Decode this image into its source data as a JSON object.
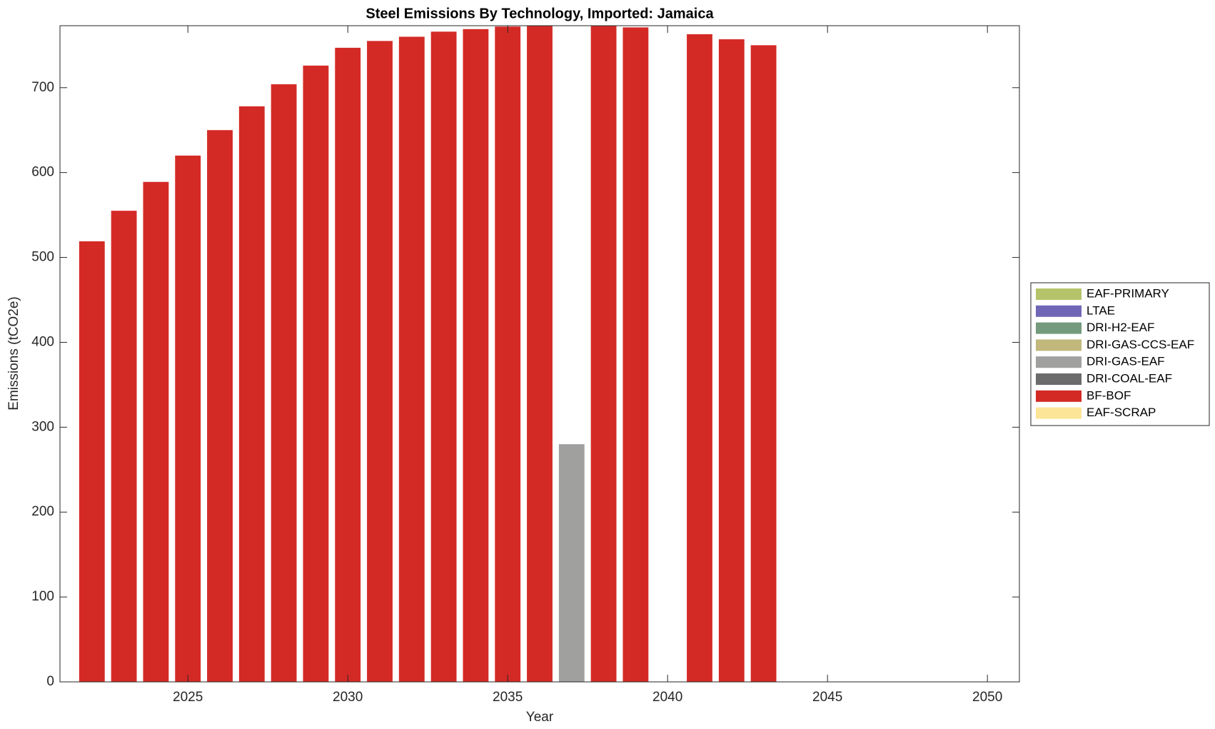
{
  "chart_data": {
    "type": "bar",
    "stacked": true,
    "title": "Steel Emissions By Technology, Imported: Jamaica",
    "xlabel": "Year",
    "ylabel": "Emissions (tCO2e)",
    "x": [
      2022,
      2023,
      2024,
      2025,
      2026,
      2027,
      2028,
      2029,
      2030,
      2031,
      2032,
      2033,
      2034,
      2035,
      2036,
      2037,
      2038,
      2039,
      2040,
      2041,
      2042,
      2043
    ],
    "series": [
      {
        "name": "EAF-PRIMARY",
        "color": "#b5c46a",
        "values": [
          0,
          0,
          0,
          0,
          0,
          0,
          0,
          0,
          0,
          0,
          0,
          0,
          0,
          0,
          0,
          0,
          0,
          0,
          0,
          0,
          0,
          0
        ]
      },
      {
        "name": "LTAE",
        "color": "#6f67b5",
        "values": [
          0,
          0,
          0,
          0,
          0,
          0,
          0,
          0,
          0,
          0,
          0,
          0,
          0,
          0,
          0,
          0,
          0,
          0,
          0,
          0,
          0,
          0
        ]
      },
      {
        "name": "DRI-H2-EAF",
        "color": "#739a7c",
        "values": [
          0,
          0,
          0,
          0,
          0,
          0,
          0,
          0,
          0,
          0,
          0,
          0,
          0,
          0,
          0,
          0,
          0,
          0,
          0,
          0,
          0,
          0
        ]
      },
      {
        "name": "DRI-GAS-CCS-EAF",
        "color": "#c2b87c",
        "values": [
          0,
          0,
          0,
          0,
          0,
          0,
          0,
          0,
          0,
          0,
          0,
          0,
          0,
          0,
          0,
          0,
          0,
          0,
          0,
          0,
          0,
          0
        ]
      },
      {
        "name": "DRI-GAS-EAF",
        "color": "#a0a09f",
        "values": [
          0,
          0,
          0,
          0,
          0,
          0,
          0,
          0,
          0,
          0,
          0,
          0,
          0,
          0,
          0,
          280,
          0,
          0,
          0,
          0,
          0,
          0
        ]
      },
      {
        "name": "DRI-COAL-EAF",
        "color": "#6b6b6b",
        "values": [
          0,
          0,
          0,
          0,
          0,
          0,
          0,
          0,
          0,
          0,
          0,
          0,
          0,
          0,
          0,
          0,
          0,
          0,
          0,
          0,
          0,
          0
        ]
      },
      {
        "name": "BF-BOF",
        "color": "#d42a26",
        "values": [
          519,
          555,
          589,
          620,
          650,
          678,
          704,
          726,
          747,
          755,
          760,
          766,
          769,
          772,
          775,
          0,
          776,
          771,
          0,
          763,
          757,
          750
        ]
      },
      {
        "name": "EAF-SCRAP",
        "color": "#fde597",
        "values": [
          0,
          0,
          0,
          0,
          0,
          0,
          0,
          0,
          0,
          0,
          0,
          0,
          0,
          0,
          0,
          0,
          0,
          0,
          0,
          0,
          0,
          0
        ]
      }
    ],
    "xlim": [
      2021,
      2051
    ],
    "xticks": [
      2025,
      2030,
      2035,
      2040,
      2045,
      2050
    ],
    "ylim": [
      0,
      773
    ],
    "yticks": [
      0,
      100,
      200,
      300,
      400,
      500,
      600,
      700
    ],
    "legend": "right"
  }
}
